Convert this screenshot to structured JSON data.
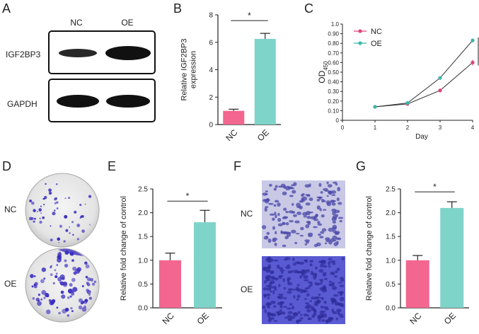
{
  "panel_labels": {
    "a": "A",
    "b": "B",
    "c": "C",
    "d": "D",
    "e": "E",
    "f": "F",
    "g": "G"
  },
  "colors": {
    "nc": "#f2668f",
    "oe": "#7fd4ca",
    "nc_line": "#e0427a",
    "oe_line": "#3ab8a8",
    "stain": "#3b2fc0"
  },
  "western_blot": {
    "lanes": [
      "NC",
      "OE"
    ],
    "proteins": [
      "IGF2BP3",
      "GAPDH"
    ]
  },
  "colony": {
    "rows": [
      "NC",
      "OE"
    ]
  },
  "migration": {
    "rows": [
      "NC",
      "OE"
    ]
  },
  "chart_data": [
    {
      "id": "B",
      "type": "bar",
      "categories": [
        "NC",
        "OE"
      ],
      "values": [
        1.0,
        6.25
      ],
      "errors": [
        0.12,
        0.4
      ],
      "ylabel": "Relative IGF2BP3\nexpression",
      "ylim": [
        0,
        8
      ],
      "yticks": [
        0,
        2,
        4,
        6,
        8
      ],
      "significance": "*"
    },
    {
      "id": "C",
      "type": "line",
      "x": [
        1,
        2,
        3,
        4
      ],
      "series": [
        {
          "name": "NC",
          "values": [
            0.14,
            0.17,
            0.31,
            0.6
          ],
          "errors": [
            0.01,
            0.01,
            0.02,
            0.03
          ]
        },
        {
          "name": "OE",
          "values": [
            0.14,
            0.18,
            0.44,
            0.83
          ],
          "errors": [
            0.01,
            0.01,
            0.01,
            0.02
          ]
        }
      ],
      "xlabel": "Day",
      "ylabel_main": "OD",
      "ylabel_sub": "450",
      "xlim": [
        0,
        4
      ],
      "xticks": [
        0,
        1,
        2,
        3,
        4
      ],
      "ylim": [
        0,
        1.0
      ],
      "yticks": [
        0,
        0.1,
        0.2,
        0.3,
        0.4,
        0.5,
        0.6,
        0.7,
        0.8,
        0.9,
        1.0
      ],
      "ytick_labels": [
        "0",
        "0.10",
        "0.20",
        "0.30",
        "0.40",
        "0.50",
        "0.60",
        "0.70",
        "0.80",
        "0.90",
        "1.0"
      ],
      "legend": "top-left",
      "significance": "*"
    },
    {
      "id": "E",
      "type": "bar",
      "categories": [
        "NC",
        "OE"
      ],
      "values": [
        1.0,
        1.8
      ],
      "errors": [
        0.15,
        0.25
      ],
      "ylabel": "Relative fold change of  control",
      "ylim": [
        0,
        2.5
      ],
      "yticks": [
        0,
        0.5,
        1.0,
        1.5,
        2.0,
        2.5
      ],
      "ytick_labels": [
        "0.0",
        "0.5",
        "1.0",
        "1.5",
        "2.0",
        "2.5"
      ],
      "significance": "*"
    },
    {
      "id": "G",
      "type": "bar",
      "categories": [
        "NC",
        "OE"
      ],
      "values": [
        1.0,
        2.1
      ],
      "errors": [
        0.1,
        0.13
      ],
      "ylabel": "Relative fold change of  control",
      "ylim": [
        0,
        2.5
      ],
      "yticks": [
        0,
        0.5,
        1.0,
        1.5,
        2.0,
        2.5
      ],
      "ytick_labels": [
        "0.0",
        "0.5",
        "1.0",
        "1.5",
        "2.0",
        "2.5"
      ],
      "significance": "*"
    }
  ]
}
